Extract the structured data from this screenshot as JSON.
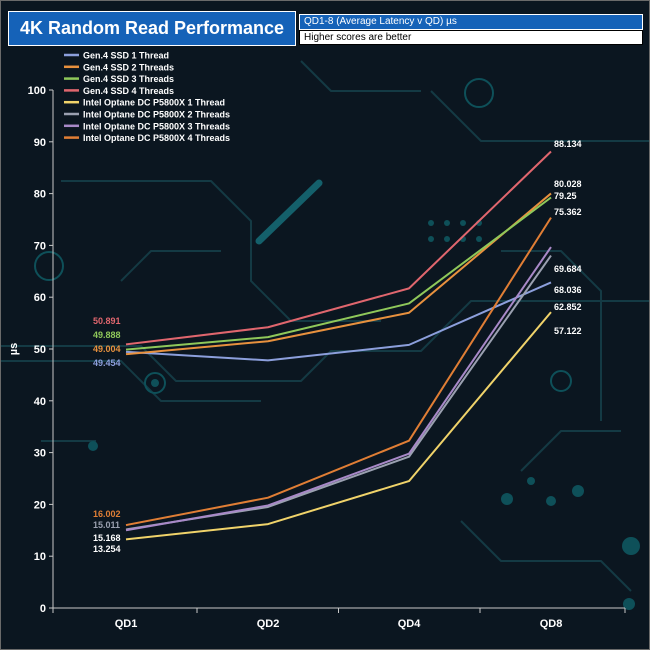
{
  "header": {
    "title": "4K Random Read Performance",
    "subtitle": "QD1-8 (Average Latency v QD)  µs",
    "note": "Higher scores are better"
  },
  "chart_data": {
    "type": "line",
    "title": "4K Random Read Performance",
    "subtitle": "QD1-8 (Average Latency v QD)  µs",
    "note": "Higher scores are better",
    "categories": [
      "QD1",
      "QD2",
      "QD4",
      "QD8"
    ],
    "ylabel": "µs",
    "xlabel": "",
    "ylim": [
      0,
      100
    ],
    "yticks": [
      0,
      10,
      20,
      30,
      40,
      50,
      60,
      70,
      80,
      90,
      100
    ],
    "grid": false,
    "legend_position": "top-left",
    "series": [
      {
        "name": "Gen.4 SSD 1 Thread",
        "color": "#8c9fdc",
        "values": [
          49.454,
          47.8,
          50.8,
          62.852
        ],
        "label_first": "49.454",
        "label_last": "62.852"
      },
      {
        "name": "Gen.4 SSD 2 Threads",
        "color": "#e8913e",
        "values": [
          49.004,
          51.5,
          57.0,
          80.028
        ],
        "label_first": "49.004",
        "label_last": "80.028"
      },
      {
        "name": "Gen.4 SSD 3 Threads",
        "color": "#8fc85a",
        "values": [
          49.888,
          52.3,
          58.8,
          79.25
        ],
        "label_first": "49.888",
        "label_last": "79.25"
      },
      {
        "name": "Gen.4 SSD 4 Threads",
        "color": "#e0666e",
        "values": [
          50.891,
          54.2,
          61.7,
          88.134
        ],
        "label_first": "50.891",
        "label_last": "88.134"
      },
      {
        "name": "Intel Optane DC P5800X 1 Thread",
        "color": "#f0d36a",
        "values": [
          13.254,
          16.2,
          24.5,
          57.122
        ],
        "label_first": "13.254",
        "label_last": "57.122"
      },
      {
        "name": "Intel Optane DC P5800X 2 Threads",
        "color": "#9aa0b0",
        "values": [
          15.168,
          19.5,
          29.2,
          68.036
        ],
        "label_first": "15.168",
        "label_last": "68.036"
      },
      {
        "name": "Intel Optane DC P5800X 3 Threads",
        "color": "#a889c8",
        "values": [
          15.011,
          19.8,
          29.8,
          69.684
        ],
        "label_first": "15.011",
        "label_last": "69.684"
      },
      {
        "name": "Intel Optane DC P5800X 4 Threads",
        "color": "#e07e35",
        "values": [
          16.002,
          21.3,
          32.3,
          75.362
        ],
        "label_first": "16.002",
        "label_last": "75.362"
      }
    ]
  }
}
